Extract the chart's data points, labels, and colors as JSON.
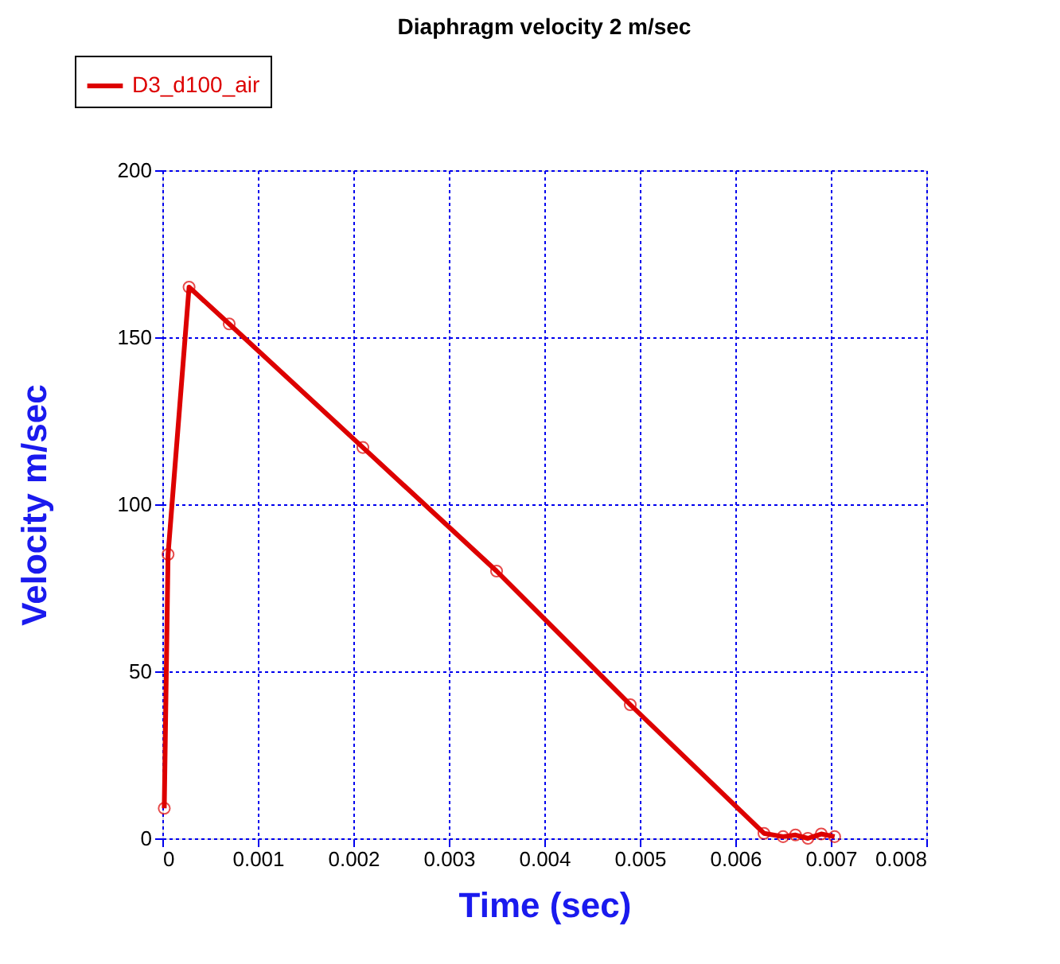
{
  "chart_data": {
    "type": "line",
    "title": "Diaphragm velocity 2 m/sec",
    "xlabel": "Time (sec)",
    "ylabel": "Velocity m/sec",
    "x": [
      2e-05,
      6e-05,
      0.00028,
      0.0007,
      0.0021,
      0.0035,
      0.0049,
      0.0063,
      0.0065,
      0.00663,
      0.00676,
      0.0069,
      0.00704
    ],
    "series": [
      {
        "name": "D3_d100_air",
        "color": "#dd0000",
        "values": [
          9,
          85,
          165,
          154,
          117,
          80,
          40,
          1.5,
          0.5,
          1,
          0,
          1.3,
          0.5
        ]
      }
    ],
    "xlim": [
      0,
      0.008
    ],
    "xticks": [
      0,
      0.001,
      0.002,
      0.003,
      0.004,
      0.005,
      0.006,
      0.007,
      0.008
    ],
    "ylim": [
      0,
      200
    ],
    "yticks": [
      0,
      50,
      100,
      150,
      200
    ],
    "grid": true,
    "legend": "top left",
    "marker": "circle",
    "line_style": "solid"
  }
}
